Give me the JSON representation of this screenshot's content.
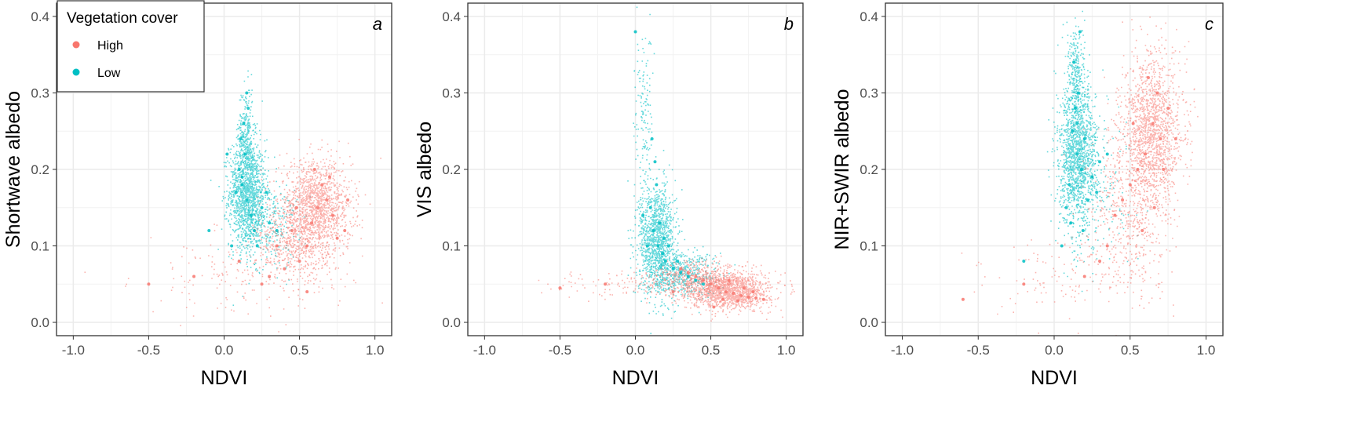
{
  "legend": {
    "title": "Vegetation cover",
    "placement": "top-left",
    "items": [
      {
        "label": "High",
        "color": "#F8766D"
      },
      {
        "label": "Low",
        "color": "#00BFC4"
      }
    ]
  },
  "colors": {
    "high": "#F8766D",
    "low": "#00BFC4",
    "grid": "#ebebeb",
    "panel_border": "#333333"
  },
  "chart_data": [
    {
      "type": "scatter",
      "panel_label": "a",
      "xlabel": "NDVI",
      "ylabel": "Shortwave albedo",
      "xlim": [
        -1.0,
        1.0
      ],
      "ylim": [
        0.0,
        0.4
      ],
      "xticks": [
        "-1.0",
        "-0.5",
        "0.0",
        "0.5",
        "1.0"
      ],
      "yticks": [
        "0.0",
        "0.1",
        "0.2",
        "0.3",
        "0.4"
      ],
      "grid": true,
      "legend": true,
      "series": [
        {
          "name": "High",
          "color": "#F8766D",
          "x": [
            0.62,
            0.58,
            0.68,
            0.55,
            0.72,
            0.45,
            0.5,
            0.65,
            0.75,
            0.4,
            0.35,
            0.6,
            0.7,
            0.48,
            0.8,
            0.3,
            0.25,
            0.1,
            -0.2,
            -0.5,
            0.82,
            0.55
          ],
          "y": [
            0.15,
            0.13,
            0.16,
            0.1,
            0.14,
            0.12,
            0.08,
            0.18,
            0.11,
            0.07,
            0.1,
            0.2,
            0.19,
            0.15,
            0.12,
            0.06,
            0.05,
            0.08,
            0.06,
            0.05,
            0.16,
            0.04
          ]
        },
        {
          "name": "Low",
          "color": "#00BFC4",
          "x": [
            0.15,
            0.12,
            0.18,
            0.1,
            0.2,
            0.25,
            0.14,
            0.13,
            0.08,
            0.05,
            0.22,
            0.3,
            0.16,
            0.11,
            0.15,
            0.12,
            0.35,
            0.28,
            0.02,
            -0.1
          ],
          "y": [
            0.16,
            0.18,
            0.14,
            0.2,
            0.12,
            0.15,
            0.22,
            0.26,
            0.17,
            0.1,
            0.1,
            0.13,
            0.28,
            0.24,
            0.3,
            0.19,
            0.12,
            0.17,
            0.22,
            0.12
          ]
        }
      ]
    },
    {
      "type": "scatter",
      "panel_label": "b",
      "xlabel": "NDVI",
      "ylabel": "VIS albedo",
      "xlim": [
        -1.0,
        1.0
      ],
      "ylim": [
        0.0,
        0.4
      ],
      "xticks": [
        "-1.0",
        "-0.5",
        "0.0",
        "0.5",
        "1.0"
      ],
      "yticks": [
        "0.0",
        "0.1",
        "0.2",
        "0.3",
        "0.4"
      ],
      "grid": true,
      "legend": false,
      "series": [
        {
          "name": "High",
          "color": "#F8766D",
          "x": [
            0.55,
            0.6,
            0.65,
            0.7,
            0.75,
            0.8,
            0.85,
            0.5,
            0.45,
            0.4,
            0.35,
            0.62,
            0.72,
            0.58,
            0.68,
            0.3,
            0.25,
            -0.2,
            -0.5,
            0.52,
            0.78
          ],
          "y": [
            0.045,
            0.04,
            0.038,
            0.035,
            0.033,
            0.032,
            0.03,
            0.05,
            0.055,
            0.06,
            0.065,
            0.055,
            0.045,
            0.03,
            0.028,
            0.07,
            0.04,
            0.05,
            0.045,
            0.02,
            0.04
          ]
        },
        {
          "name": "Low",
          "color": "#00BFC4",
          "x": [
            0.12,
            0.15,
            0.18,
            0.2,
            0.25,
            0.1,
            0.14,
            0.3,
            0.35,
            0.4,
            0.08,
            0.05,
            0.16,
            0.22,
            0.13,
            0.0,
            0.45,
            0.28,
            0.11,
            0.19
          ],
          "y": [
            0.12,
            0.1,
            0.09,
            0.08,
            0.07,
            0.15,
            0.18,
            0.065,
            0.06,
            0.055,
            0.1,
            0.14,
            0.13,
            0.1,
            0.21,
            0.38,
            0.05,
            0.08,
            0.24,
            0.11
          ]
        }
      ]
    },
    {
      "type": "scatter",
      "panel_label": "c",
      "xlabel": "NDVI",
      "ylabel": "NIR+SWIR albedo",
      "xlim": [
        -1.0,
        1.0
      ],
      "ylim": [
        0.0,
        0.4
      ],
      "xticks": [
        "-1.0",
        "-0.5",
        "0.0",
        "0.5",
        "1.0"
      ],
      "yticks": [
        "0.0",
        "0.1",
        "0.2",
        "0.3",
        "0.4"
      ],
      "grid": true,
      "legend": false,
      "series": [
        {
          "name": "High",
          "color": "#F8766D",
          "x": [
            0.65,
            0.7,
            0.6,
            0.55,
            0.75,
            0.5,
            0.45,
            0.68,
            0.72,
            0.58,
            0.62,
            0.4,
            0.35,
            0.8,
            0.3,
            0.2,
            -0.2,
            -0.6,
            0.52,
            0.66
          ],
          "y": [
            0.26,
            0.24,
            0.22,
            0.2,
            0.28,
            0.18,
            0.16,
            0.3,
            0.2,
            0.12,
            0.32,
            0.14,
            0.1,
            0.24,
            0.08,
            0.06,
            0.05,
            0.03,
            0.26,
            0.15
          ]
        },
        {
          "name": "Low",
          "color": "#00BFC4",
          "x": [
            0.15,
            0.12,
            0.18,
            0.1,
            0.2,
            0.14,
            0.16,
            0.08,
            0.25,
            0.3,
            0.13,
            0.17,
            0.05,
            0.22,
            0.15,
            0.11,
            0.35,
            -0.2,
            0.19,
            0.28
          ],
          "y": [
            0.22,
            0.25,
            0.2,
            0.18,
            0.24,
            0.28,
            0.3,
            0.15,
            0.19,
            0.21,
            0.34,
            0.38,
            0.1,
            0.16,
            0.26,
            0.13,
            0.22,
            0.08,
            0.12,
            0.17
          ]
        }
      ]
    }
  ]
}
